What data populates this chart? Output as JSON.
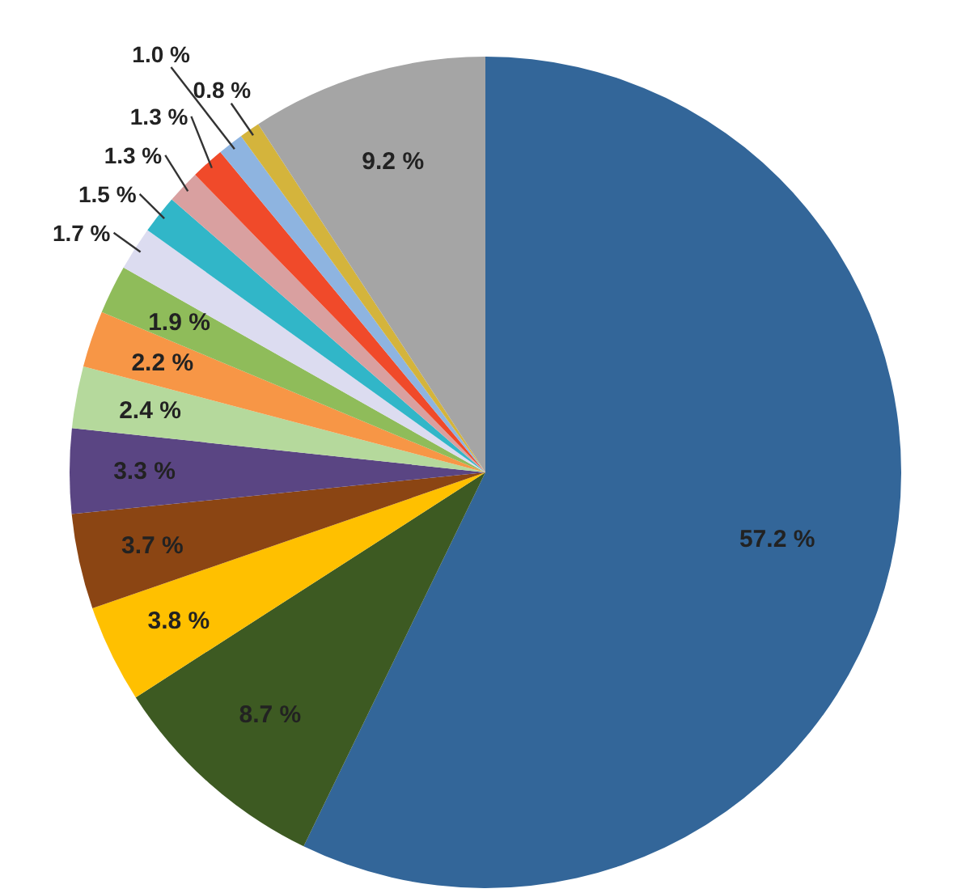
{
  "chart_data": {
    "type": "pie",
    "categories": [
      null,
      null,
      null,
      null,
      null,
      null,
      null,
      null,
      null,
      null,
      null,
      null,
      null,
      null,
      null
    ],
    "values": [
      57.2,
      8.7,
      3.8,
      3.7,
      3.3,
      2.4,
      2.2,
      1.9,
      1.7,
      1.5,
      1.3,
      1.3,
      1.0,
      0.8,
      9.2
    ],
    "colors": [
      "#336699",
      "#3d5a22",
      "#ffc000",
      "#8b4513",
      "#5a4583",
      "#b5d99c",
      "#f79646",
      "#8fbc5a",
      "#dcdcf0",
      "#31b6c8",
      "#d9a0a0",
      "#f04a2a",
      "#8eb4e0",
      "#d4b43c",
      "#a5a5a5"
    ],
    "value_labels": [
      "57.2 %",
      "8.7 %",
      "3.8 %",
      "3.7 %",
      "3.3 %",
      "2.4 %",
      "2.2 %",
      "1.9 %",
      "1.7 %",
      "1.5 %",
      "1.3 %",
      "1.3 %",
      "1.0 %",
      "0.8 %",
      "9.2 %"
    ]
  }
}
